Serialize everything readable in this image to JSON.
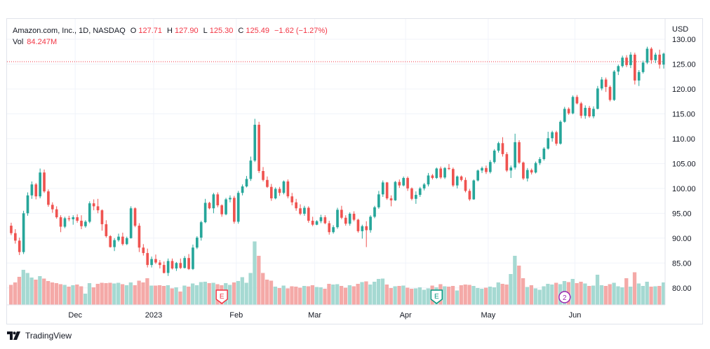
{
  "header": {
    "symbol": "Amazon.com, Inc., 1D, NASDAQ",
    "o_label": "O",
    "o_value": "127.71",
    "h_label": "H",
    "h_value": "127.90",
    "l_label": "L",
    "l_value": "125.30",
    "c_label": "C",
    "c_value": "125.49",
    "change": "−1.62 (−1.27%)",
    "vol_label": "Vol",
    "vol_value": "84.247M"
  },
  "currency_label": "USD",
  "footer": {
    "brand": "TradingView"
  },
  "colors": {
    "up": "#26a69a",
    "down": "#ef5350",
    "vol_up": "#a5d9d2",
    "vol_down": "#f4a9a7",
    "grid": "#f0f3fa",
    "pricebar": "#f23645",
    "axis_text": "#131722"
  },
  "chart_data": {
    "type": "candlestick",
    "ylim": [
      76,
      131
    ],
    "y_ticks": [
      "80.00",
      "85.00",
      "90.00",
      "95.00",
      "100.00",
      "105.00",
      "110.00",
      "115.00",
      "120.00",
      "125.00",
      "130.00"
    ],
    "x_ticks": [
      "Dec",
      "2023",
      "Feb",
      "Mar",
      "Apr",
      "May",
      "Jun"
    ],
    "last_price": 125.49,
    "volume_max": 190,
    "events": [
      {
        "label": "E",
        "index": 51,
        "style": "earnings-red"
      },
      {
        "label": "E",
        "index": 103,
        "style": "earnings-green"
      },
      {
        "label": "2",
        "index": 134,
        "style": "split"
      }
    ],
    "candles": [
      [
        92.5,
        93.1,
        90.6,
        91.0,
        57
      ],
      [
        91.0,
        91.8,
        88.9,
        89.5,
        64
      ],
      [
        89.5,
        90.1,
        86.6,
        87.2,
        80
      ],
      [
        87.2,
        95.5,
        86.8,
        95.0,
        100
      ],
      [
        95.0,
        99.2,
        94.5,
        98.6,
        91
      ],
      [
        98.6,
        101.4,
        97.9,
        100.8,
        78
      ],
      [
        100.8,
        101.1,
        97.8,
        98.4,
        72
      ],
      [
        98.4,
        104.0,
        98.0,
        103.2,
        82
      ],
      [
        103.2,
        103.8,
        99.1,
        99.4,
        75
      ],
      [
        99.4,
        99.8,
        96.3,
        96.7,
        68
      ],
      [
        96.7,
        97.2,
        95.1,
        95.8,
        64
      ],
      [
        95.8,
        96.4,
        93.9,
        94.2,
        62
      ],
      [
        94.2,
        94.6,
        91.2,
        92.3,
        59
      ],
      [
        92.3,
        94.3,
        92.0,
        94.0,
        57
      ],
      [
        94.0,
        94.5,
        93.4,
        93.8,
        52
      ],
      [
        93.8,
        94.6,
        92.7,
        94.2,
        56
      ],
      [
        94.2,
        94.8,
        93.1,
        93.5,
        58
      ],
      [
        93.5,
        94.6,
        91.8,
        92.4,
        53
      ],
      [
        92.4,
        93.6,
        92.1,
        93.3,
        32
      ],
      [
        93.3,
        97.4,
        93.0,
        97.0,
        62
      ],
      [
        97.0,
        97.8,
        95.6,
        96.4,
        50
      ],
      [
        96.4,
        97.9,
        95.0,
        95.6,
        60
      ],
      [
        95.6,
        95.8,
        91.5,
        92.8,
        63
      ],
      [
        92.8,
        93.6,
        90.1,
        90.4,
        62
      ],
      [
        90.4,
        90.6,
        88.1,
        88.2,
        63
      ],
      [
        88.2,
        90.0,
        87.4,
        89.6,
        61
      ],
      [
        89.6,
        90.9,
        89.3,
        90.3,
        63
      ],
      [
        90.3,
        91.1,
        88.5,
        88.8,
        59
      ],
      [
        88.8,
        90.3,
        88.6,
        90.0,
        56
      ],
      [
        90.0,
        96.4,
        89.9,
        96.0,
        64
      ],
      [
        96.0,
        96.2,
        92.2,
        92.5,
        56
      ],
      [
        92.5,
        93.0,
        87.2,
        88.1,
        69
      ],
      [
        88.1,
        88.8,
        86.5,
        87.0,
        64
      ],
      [
        87.0,
        87.9,
        84.1,
        84.6,
        76
      ],
      [
        84.6,
        86.3,
        84.1,
        85.8,
        55
      ],
      [
        85.8,
        86.7,
        84.8,
        85.1,
        55
      ],
      [
        85.1,
        85.6,
        83.9,
        84.6,
        56
      ],
      [
        84.6,
        85.3,
        82.9,
        83.0,
        54
      ],
      [
        83.0,
        85.9,
        82.4,
        85.4,
        56
      ],
      [
        85.4,
        85.9,
        83.7,
        83.9,
        47
      ],
      [
        83.9,
        85.2,
        83.4,
        85.0,
        50
      ],
      [
        85.0,
        85.9,
        83.8,
        84.0,
        38
      ],
      [
        84.0,
        86.4,
        83.9,
        86.0,
        55
      ],
      [
        86.0,
        86.8,
        83.6,
        83.8,
        52
      ],
      [
        83.8,
        88.7,
        83.6,
        88.1,
        61
      ],
      [
        88.1,
        90.4,
        87.8,
        90.1,
        56
      ],
      [
        90.1,
        93.5,
        89.5,
        93.2,
        65
      ],
      [
        93.2,
        97.9,
        93.0,
        97.1,
        66
      ],
      [
        97.1,
        97.3,
        95.8,
        96.0,
        62
      ],
      [
        96.0,
        99.1,
        95.0,
        98.8,
        63
      ],
      [
        98.8,
        99.2,
        96.2,
        96.6,
        59
      ],
      [
        96.6,
        96.8,
        94.3,
        94.8,
        56
      ],
      [
        94.8,
        98.1,
        94.6,
        97.8,
        62
      ],
      [
        97.8,
        98.6,
        97.2,
        98.1,
        57
      ],
      [
        98.1,
        98.5,
        92.9,
        93.3,
        64
      ],
      [
        93.3,
        99.5,
        92.9,
        99.1,
        68
      ],
      [
        99.1,
        100.8,
        98.6,
        100.4,
        79
      ],
      [
        100.4,
        102.5,
        100.2,
        101.9,
        63
      ],
      [
        101.9,
        106.4,
        101.5,
        105.6,
        91
      ],
      [
        105.6,
        114.0,
        105.3,
        112.8,
        181
      ],
      [
        112.8,
        113.4,
        103.1,
        103.5,
        140
      ],
      [
        103.5,
        104.3,
        101.4,
        101.7,
        91
      ],
      [
        101.7,
        102.4,
        100.1,
        100.3,
        72
      ],
      [
        100.3,
        100.9,
        97.5,
        98.0,
        69
      ],
      [
        98.0,
        100.2,
        97.8,
        99.9,
        52
      ],
      [
        99.9,
        100.3,
        98.5,
        99.1,
        48
      ],
      [
        99.1,
        101.6,
        98.8,
        101.4,
        55
      ],
      [
        101.4,
        101.8,
        98.0,
        98.4,
        47
      ],
      [
        98.4,
        99.1,
        96.6,
        97.2,
        53
      ],
      [
        97.2,
        97.9,
        95.5,
        96.0,
        52
      ],
      [
        96.0,
        96.8,
        94.6,
        94.9,
        49
      ],
      [
        94.9,
        96.5,
        94.5,
        96.1,
        54
      ],
      [
        96.1,
        96.4,
        93.1,
        93.5,
        53
      ],
      [
        93.5,
        94.3,
        92.4,
        92.7,
        56
      ],
      [
        92.7,
        93.6,
        92.6,
        93.4,
        51
      ],
      [
        93.4,
        94.7,
        93.0,
        94.2,
        50
      ],
      [
        94.2,
        94.6,
        92.8,
        93.0,
        46
      ],
      [
        93.0,
        93.5,
        90.7,
        91.2,
        60
      ],
      [
        91.2,
        92.6,
        90.9,
        92.2,
        58
      ],
      [
        92.2,
        96.1,
        91.9,
        95.7,
        59
      ],
      [
        95.7,
        96.5,
        93.8,
        94.1,
        54
      ],
      [
        94.1,
        94.6,
        92.5,
        92.9,
        49
      ],
      [
        92.9,
        95.2,
        92.5,
        94.9,
        56
      ],
      [
        94.9,
        95.4,
        93.4,
        93.7,
        53
      ],
      [
        93.7,
        93.9,
        91.1,
        91.4,
        60
      ],
      [
        91.4,
        92.7,
        89.9,
        92.4,
        65
      ],
      [
        92.4,
        93.4,
        88.2,
        91.6,
        67
      ],
      [
        91.6,
        94.6,
        91.1,
        94.3,
        58
      ],
      [
        94.3,
        96.5,
        94.0,
        96.2,
        66
      ],
      [
        96.2,
        99.5,
        95.9,
        98.8,
        74
      ],
      [
        98.8,
        101.6,
        98.3,
        101.2,
        75
      ],
      [
        101.2,
        101.3,
        97.7,
        98.0,
        58
      ],
      [
        98.0,
        98.6,
        96.4,
        97.6,
        48
      ],
      [
        97.6,
        101.5,
        97.5,
        101.3,
        53
      ],
      [
        101.3,
        101.8,
        100.1,
        100.6,
        54
      ],
      [
        100.6,
        102.4,
        100.4,
        102.1,
        55
      ],
      [
        102.1,
        102.4,
        99.5,
        100.0,
        49
      ],
      [
        100.0,
        100.2,
        97.6,
        97.9,
        46
      ],
      [
        97.9,
        99.4,
        96.9,
        98.7,
        47
      ],
      [
        98.7,
        100.3,
        98.3,
        100.0,
        50
      ],
      [
        100.0,
        101.1,
        99.6,
        100.8,
        43
      ],
      [
        100.8,
        103.1,
        100.4,
        102.6,
        47
      ],
      [
        102.6,
        102.9,
        101.8,
        102.1,
        55
      ],
      [
        102.1,
        104.2,
        101.9,
        104.0,
        50
      ],
      [
        104.0,
        104.4,
        101.9,
        102.2,
        59
      ],
      [
        102.2,
        104.3,
        101.9,
        104.1,
        53
      ],
      [
        104.1,
        104.9,
        103.7,
        103.9,
        52
      ],
      [
        103.9,
        104.2,
        100.3,
        100.6,
        54
      ],
      [
        100.6,
        102.6,
        100.0,
        102.4,
        41
      ],
      [
        102.4,
        102.6,
        101.4,
        101.7,
        56
      ],
      [
        101.7,
        102.2,
        99.2,
        99.5,
        58
      ],
      [
        99.5,
        99.9,
        97.5,
        97.8,
        57
      ],
      [
        97.8,
        101.8,
        97.7,
        101.6,
        54
      ],
      [
        101.6,
        103.8,
        101.4,
        103.6,
        48
      ],
      [
        103.6,
        104.4,
        103.1,
        104.1,
        46
      ],
      [
        104.1,
        104.6,
        102.9,
        103.3,
        49
      ],
      [
        103.3,
        105.7,
        103.0,
        105.3,
        52
      ],
      [
        105.3,
        107.9,
        105.0,
        107.6,
        50
      ],
      [
        107.6,
        109.4,
        107.2,
        109.1,
        64
      ],
      [
        109.1,
        110.3,
        106.4,
        106.9,
        60
      ],
      [
        106.9,
        107.3,
        103.3,
        103.6,
        58
      ],
      [
        103.6,
        104.6,
        102.1,
        104.2,
        88
      ],
      [
        104.2,
        111.0,
        103.8,
        109.3,
        140
      ],
      [
        109.3,
        109.7,
        104.9,
        105.2,
        112
      ],
      [
        105.2,
        105.4,
        101.7,
        102.0,
        76
      ],
      [
        102.0,
        104.1,
        101.4,
        103.7,
        51
      ],
      [
        103.7,
        104.0,
        102.8,
        103.2,
        56
      ],
      [
        103.2,
        105.4,
        103.0,
        105.1,
        47
      ],
      [
        105.1,
        106.3,
        104.7,
        105.9,
        43
      ],
      [
        105.9,
        108.3,
        105.6,
        108.0,
        53
      ],
      [
        108.0,
        111.4,
        107.8,
        110.1,
        60
      ],
      [
        110.1,
        111.6,
        109.4,
        111.3,
        58
      ],
      [
        111.3,
        111.6,
        108.6,
        109.0,
        63
      ],
      [
        109.0,
        113.7,
        108.8,
        113.4,
        59
      ],
      [
        113.4,
        116.4,
        113.2,
        116.0,
        68
      ],
      [
        116.0,
        116.3,
        114.8,
        115.1,
        65
      ],
      [
        115.1,
        118.7,
        114.9,
        118.4,
        74
      ],
      [
        118.4,
        118.8,
        116.9,
        117.1,
        62
      ],
      [
        117.1,
        117.4,
        114.1,
        114.6,
        66
      ],
      [
        114.6,
        116.7,
        114.0,
        116.2,
        61
      ],
      [
        116.2,
        116.6,
        114.2,
        114.5,
        54
      ],
      [
        114.5,
        116.5,
        114.1,
        116.0,
        55
      ],
      [
        116.0,
        120.6,
        115.9,
        120.1,
        86
      ],
      [
        120.1,
        122.4,
        119.7,
        121.9,
        56
      ],
      [
        121.9,
        122.3,
        119.4,
        120.4,
        54
      ],
      [
        120.4,
        120.7,
        117.5,
        117.8,
        59
      ],
      [
        117.8,
        123.8,
        117.6,
        123.5,
        63
      ],
      [
        123.5,
        124.9,
        122.8,
        124.6,
        53
      ],
      [
        124.6,
        126.7,
        124.3,
        126.3,
        50
      ],
      [
        126.3,
        126.8,
        124.4,
        124.8,
        76
      ],
      [
        124.8,
        127.4,
        124.2,
        126.9,
        52
      ],
      [
        126.9,
        127.3,
        120.9,
        121.7,
        93
      ],
      [
        121.7,
        123.8,
        120.6,
        123.4,
        61
      ],
      [
        123.4,
        125.7,
        123.1,
        125.3,
        54
      ],
      [
        125.3,
        128.5,
        125.0,
        128.1,
        66
      ],
      [
        128.1,
        128.4,
        125.1,
        125.8,
        52
      ],
      [
        125.8,
        127.3,
        125.2,
        126.9,
        53
      ],
      [
        126.9,
        127.9,
        124.1,
        124.9,
        54
      ],
      [
        124.9,
        127.3,
        124.1,
        127.1,
        64
      ]
    ]
  }
}
